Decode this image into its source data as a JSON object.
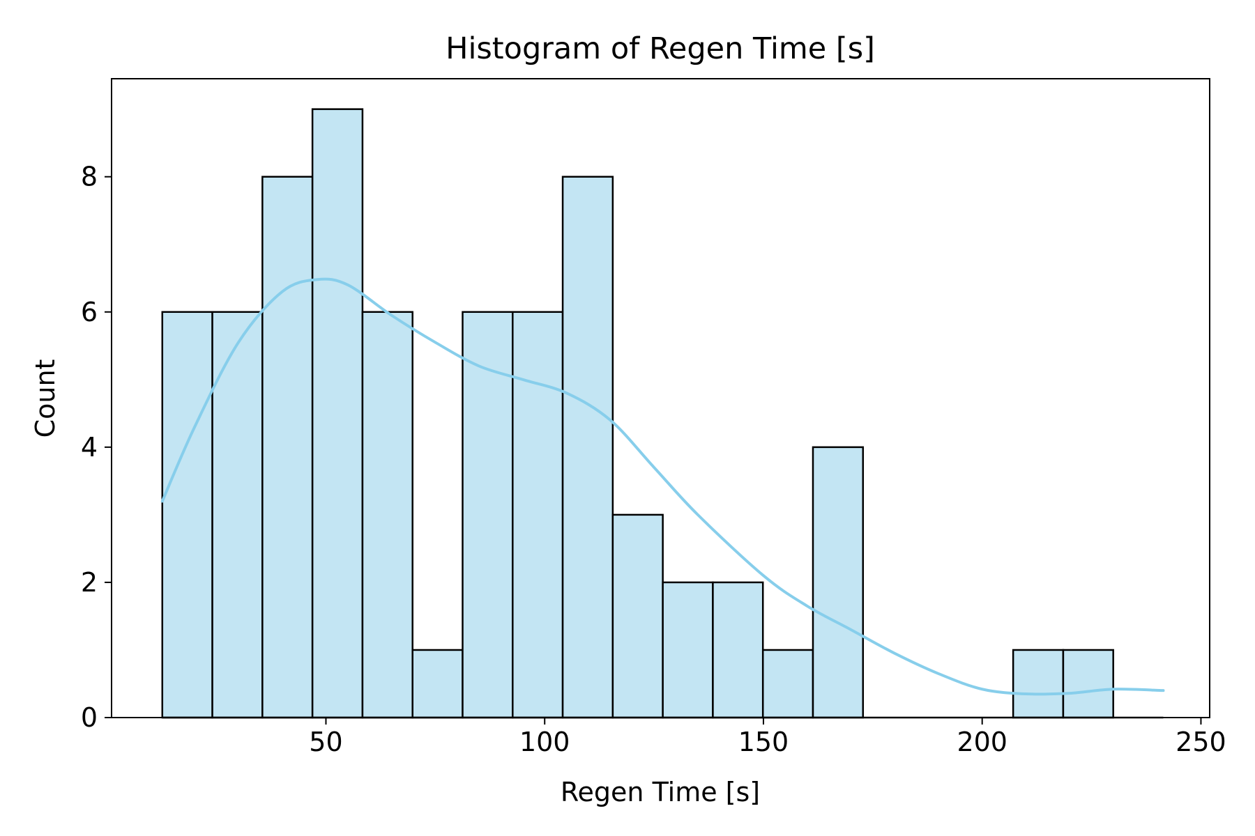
{
  "chart_data": {
    "type": "bar",
    "title": "Histogram of Regen Time [s]",
    "xlabel": "Regen Time [s]",
    "ylabel": "Count",
    "xlim": [
      1,
      252
    ],
    "ylim": [
      0,
      9.45
    ],
    "xticks": [
      50,
      100,
      150,
      200,
      250
    ],
    "yticks": [
      0,
      2,
      4,
      6,
      8
    ],
    "bin_edges": [
      12.6,
      24.04,
      35.48,
      46.92,
      58.36,
      69.8,
      81.24,
      92.68,
      104.12,
      115.56,
      127.0,
      138.44,
      149.88,
      161.32,
      172.76,
      184.2,
      195.64,
      207.08,
      218.52,
      229.96,
      241.4
    ],
    "counts": [
      6,
      6,
      8,
      9,
      6,
      1,
      6,
      6,
      8,
      3,
      2,
      2,
      1,
      4,
      0,
      0,
      0,
      1,
      1,
      0
    ],
    "kde": {
      "x": [
        12.6,
        20,
        30,
        40,
        48,
        55,
        65,
        75,
        85,
        95,
        105,
        115,
        125,
        135,
        150,
        160,
        170,
        180,
        190,
        200,
        210,
        220,
        230,
        241.4
      ],
      "y": [
        3.2,
        4.3,
        5.55,
        6.3,
        6.48,
        6.4,
        5.95,
        5.55,
        5.2,
        5.0,
        4.8,
        4.4,
        3.7,
        3.0,
        2.1,
        1.65,
        1.3,
        0.95,
        0.65,
        0.42,
        0.35,
        0.36,
        0.42,
        0.4
      ]
    },
    "grid": false,
    "legend": "none",
    "colors": {
      "bar_fill": "#c3e5f3",
      "bar_edge": "#000000",
      "kde_line": "#87ceeb"
    }
  }
}
